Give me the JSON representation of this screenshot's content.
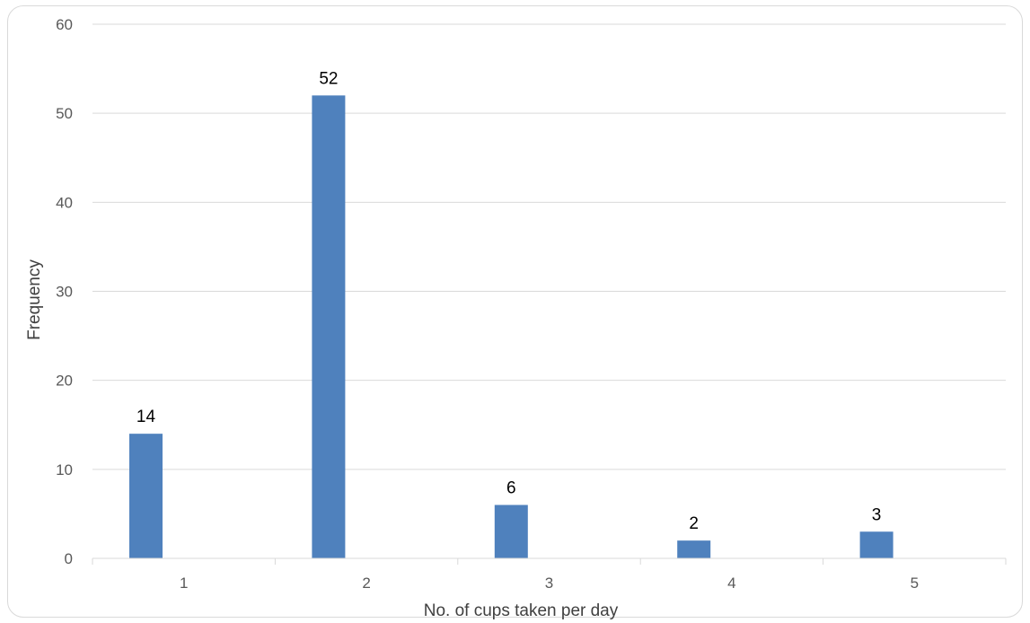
{
  "chart_data": {
    "type": "bar",
    "categories": [
      "1",
      "2",
      "3",
      "4",
      "5"
    ],
    "values": [
      14,
      52,
      6,
      2,
      3
    ],
    "data_labels": [
      "14",
      "52",
      "6",
      "2",
      "3"
    ],
    "xlabel": "No. of cups taken per day",
    "ylabel": "Frequency",
    "ylim": [
      0,
      60
    ],
    "y_ticks": [
      "0",
      "10",
      "20",
      "30",
      "40",
      "50",
      "60"
    ],
    "grid": true,
    "legend": "none",
    "bar_color": "#4f81bd",
    "grid_color": "#d9d9d9"
  }
}
